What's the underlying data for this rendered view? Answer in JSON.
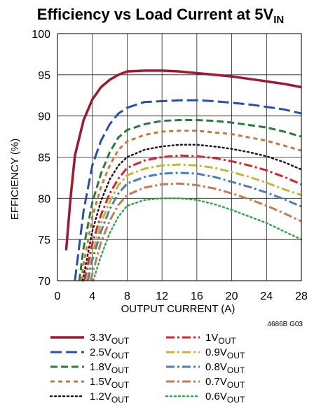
{
  "chart_data": {
    "type": "line",
    "title": {
      "main": "Efficiency vs Load Current at 5V",
      "sub": "IN"
    },
    "xlabel": "OUTPUT CURRENT (A)",
    "ylabel": "EFFICIENCY (%)",
    "xlim": [
      0,
      28
    ],
    "ylim": [
      70,
      100
    ],
    "x_ticks": [
      0,
      4,
      8,
      12,
      16,
      20,
      24,
      28
    ],
    "y_ticks": [
      70,
      75,
      80,
      85,
      90,
      95,
      100
    ],
    "grid": true,
    "figure_code": "4686B G03",
    "legend_position": "below",
    "series": [
      {
        "name": "3.3V",
        "sub": "OUT",
        "color": "#a0182f",
        "dash": "solid",
        "points": [
          [
            1,
            73.7
          ],
          [
            1.5,
            80
          ],
          [
            2,
            85.2
          ],
          [
            3,
            89.5
          ],
          [
            4,
            92
          ],
          [
            5,
            93.5
          ],
          [
            6,
            94.4
          ],
          [
            7,
            95
          ],
          [
            8,
            95.4
          ],
          [
            10,
            95.5
          ],
          [
            12,
            95.5
          ],
          [
            14,
            95.4
          ],
          [
            16,
            95.2
          ],
          [
            18,
            95
          ],
          [
            20,
            94.8
          ],
          [
            22,
            94.5
          ],
          [
            24,
            94.2
          ],
          [
            26,
            93.9
          ],
          [
            28,
            93.5
          ]
        ]
      },
      {
        "name": "2.5V",
        "sub": "OUT",
        "color": "#2850a8",
        "dash": "long",
        "points": [
          [
            2,
            70
          ],
          [
            3,
            78.5
          ],
          [
            4,
            84
          ],
          [
            5,
            87
          ],
          [
            6,
            89
          ],
          [
            7,
            90.3
          ],
          [
            8,
            91
          ],
          [
            10,
            91.7
          ],
          [
            12,
            91.8
          ],
          [
            14,
            91.9
          ],
          [
            16,
            91.9
          ],
          [
            18,
            91.8
          ],
          [
            20,
            91.6
          ],
          [
            22,
            91.4
          ],
          [
            24,
            91.1
          ],
          [
            26,
            90.8
          ],
          [
            28,
            90.3
          ]
        ]
      },
      {
        "name": "1.8V",
        "sub": "OUT",
        "color": "#2a7a3c",
        "dash": "medium",
        "points": [
          [
            2.5,
            70
          ],
          [
            3,
            74
          ],
          [
            4,
            79.5
          ],
          [
            5,
            83
          ],
          [
            6,
            85.6
          ],
          [
            7,
            87.4
          ],
          [
            8,
            88.3
          ],
          [
            10,
            89
          ],
          [
            12,
            89.4
          ],
          [
            14,
            89.5
          ],
          [
            16,
            89.5
          ],
          [
            18,
            89.4
          ],
          [
            20,
            89.2
          ],
          [
            22,
            88.9
          ],
          [
            24,
            88.6
          ],
          [
            26,
            88.1
          ],
          [
            28,
            87.5
          ]
        ]
      },
      {
        "name": "1.5V",
        "sub": "OUT",
        "color": "#c8783a",
        "dash": "short",
        "points": [
          [
            2.7,
            70
          ],
          [
            3,
            72
          ],
          [
            4,
            77.7
          ],
          [
            5,
            81.4
          ],
          [
            6,
            84
          ],
          [
            7,
            85.9
          ],
          [
            8,
            86.9
          ],
          [
            10,
            87.7
          ],
          [
            12,
            88.1
          ],
          [
            14,
            88.2
          ],
          [
            16,
            88.2
          ],
          [
            18,
            88
          ],
          [
            20,
            87.8
          ],
          [
            22,
            87.4
          ],
          [
            24,
            87
          ],
          [
            26,
            86.4
          ],
          [
            28,
            85.8
          ]
        ]
      },
      {
        "name": "1.2V",
        "sub": "OUT",
        "color": "#1a1a1a",
        "dash": "dotted",
        "points": [
          [
            2.9,
            70
          ],
          [
            4,
            76
          ],
          [
            5,
            79.7
          ],
          [
            6,
            82.3
          ],
          [
            7,
            84
          ],
          [
            8,
            85
          ],
          [
            10,
            85.9
          ],
          [
            12,
            86.3
          ],
          [
            14,
            86.5
          ],
          [
            16,
            86.5
          ],
          [
            18,
            86.3
          ],
          [
            20,
            86
          ],
          [
            22,
            85.6
          ],
          [
            24,
            85.1
          ],
          [
            26,
            84.4
          ],
          [
            28,
            83.5
          ]
        ]
      },
      {
        "name": "1V",
        "sub": "OUT",
        "color": "#d8242c",
        "dash": "dashdot",
        "points": [
          [
            3.1,
            70
          ],
          [
            4,
            74.5
          ],
          [
            5,
            78
          ],
          [
            6,
            80.6
          ],
          [
            7,
            82.4
          ],
          [
            8,
            83.7
          ],
          [
            10,
            84.6
          ],
          [
            12,
            85
          ],
          [
            14,
            85.2
          ],
          [
            16,
            85.1
          ],
          [
            18,
            84.9
          ],
          [
            20,
            84.5
          ],
          [
            22,
            84
          ],
          [
            24,
            83.4
          ],
          [
            26,
            82.6
          ],
          [
            28,
            81.7
          ]
        ]
      },
      {
        "name": "0.9V",
        "sub": "OUT",
        "color": "#c9b43a",
        "dash": "dashdot",
        "points": [
          [
            3.3,
            70
          ],
          [
            4,
            73.3
          ],
          [
            5,
            77
          ],
          [
            6,
            79.6
          ],
          [
            7,
            81.6
          ],
          [
            8,
            82.8
          ],
          [
            10,
            83.6
          ],
          [
            12,
            84
          ],
          [
            14,
            84.1
          ],
          [
            16,
            84
          ],
          [
            18,
            83.7
          ],
          [
            20,
            83.2
          ],
          [
            22,
            82.6
          ],
          [
            24,
            81.9
          ],
          [
            26,
            81.1
          ],
          [
            28,
            80.4
          ]
        ]
      },
      {
        "name": "0.8V",
        "sub": "OUT",
        "color": "#4a7fb8",
        "dash": "dashdot",
        "points": [
          [
            3.5,
            70
          ],
          [
            4,
            72.5
          ],
          [
            5,
            76
          ],
          [
            6,
            78.7
          ],
          [
            7,
            80.6
          ],
          [
            8,
            81.8
          ],
          [
            10,
            82.6
          ],
          [
            12,
            83
          ],
          [
            14,
            83.1
          ],
          [
            16,
            83
          ],
          [
            18,
            82.6
          ],
          [
            20,
            82
          ],
          [
            22,
            81.4
          ],
          [
            24,
            80.7
          ],
          [
            26,
            79.9
          ],
          [
            28,
            79
          ]
        ]
      },
      {
        "name": "0.7V",
        "sub": "OUT",
        "color": "#c87a50",
        "dash": "dashdot",
        "points": [
          [
            3.8,
            70
          ],
          [
            5,
            74.7
          ],
          [
            6,
            77.3
          ],
          [
            7,
            79.2
          ],
          [
            8,
            80.4
          ],
          [
            10,
            81.3
          ],
          [
            12,
            81.7
          ],
          [
            14,
            81.8
          ],
          [
            16,
            81.6
          ],
          [
            18,
            81.2
          ],
          [
            20,
            80.6
          ],
          [
            22,
            79.9
          ],
          [
            24,
            79.1
          ],
          [
            26,
            78.2
          ],
          [
            28,
            77.2
          ]
        ]
      },
      {
        "name": "0.6V",
        "sub": "OUT",
        "color": "#2fa84a",
        "dash": "dotted",
        "points": [
          [
            4.1,
            70
          ],
          [
            5,
            73
          ],
          [
            6,
            75.8
          ],
          [
            7,
            77.8
          ],
          [
            8,
            79.1
          ],
          [
            10,
            79.8
          ],
          [
            12,
            80
          ],
          [
            14,
            80
          ],
          [
            16,
            79.8
          ],
          [
            18,
            79.3
          ],
          [
            20,
            78.6
          ],
          [
            22,
            77.8
          ],
          [
            24,
            77
          ],
          [
            26,
            76
          ],
          [
            28,
            75
          ]
        ]
      }
    ]
  }
}
